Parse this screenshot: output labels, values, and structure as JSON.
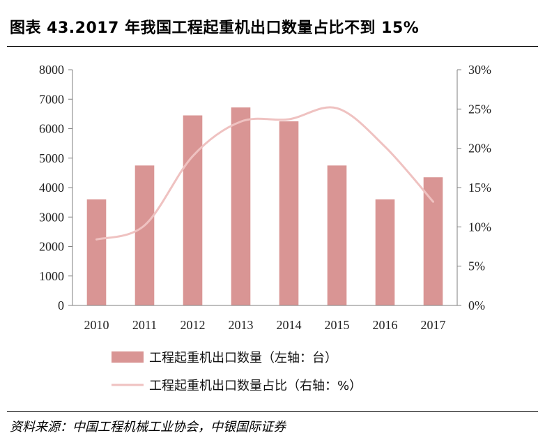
{
  "header": {
    "title": "图表 43.2017 年我国工程起重机出口数量占比不到 15%"
  },
  "footer": {
    "source": "资料来源：中国工程机械工业协会，中银国际证券"
  },
  "colors": {
    "bar": "#d99594",
    "line": "#efc2c1",
    "axis": "#7f7f7f"
  },
  "chart_data": {
    "type": "bar+line",
    "categories": [
      "2010",
      "2011",
      "2012",
      "2013",
      "2014",
      "2015",
      "2016",
      "2017"
    ],
    "series": [
      {
        "name": "工程起重机出口数量（左轴：台）",
        "type": "bar",
        "axis": "left",
        "values": [
          3600,
          4750,
          6450,
          6720,
          6250,
          4750,
          3600,
          4350
        ]
      },
      {
        "name": "工程起重机出口数量占比（右轴：%）",
        "type": "line",
        "axis": "right",
        "values": [
          8.4,
          10.2,
          19.0,
          23.4,
          23.7,
          25.1,
          20.2,
          13.2
        ]
      }
    ],
    "left_axis": {
      "min": 0,
      "max": 8000,
      "ticks": [
        "0",
        "1000",
        "2000",
        "3000",
        "4000",
        "5000",
        "6000",
        "7000",
        "8000"
      ]
    },
    "right_axis": {
      "min": 0,
      "max": 30,
      "ticks": [
        "0%",
        "5%",
        "10%",
        "15%",
        "20%",
        "25%",
        "30%"
      ]
    },
    "legend_position": "bottom"
  }
}
